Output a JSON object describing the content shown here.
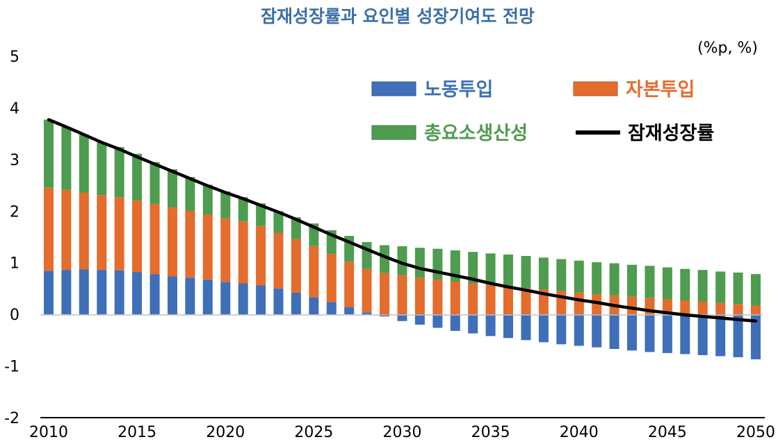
{
  "chart_data": {
    "type": "bar",
    "stacked": true,
    "title": "잠재성장률과 요인별 성장기여도 전망",
    "unit_label": "(%p, %)",
    "ylim": [
      -2,
      5
    ],
    "yticks": [
      5,
      4,
      3,
      2,
      1,
      0,
      -1,
      -2
    ],
    "x_start": 2010,
    "x_end": 2050,
    "xticks": [
      2010,
      2015,
      2020,
      2025,
      2030,
      2035,
      2040,
      2045,
      2050
    ],
    "legend_position": "top-right",
    "colors": {
      "labor": "#3e6fb8",
      "capital": "#e46c2c",
      "tfp": "#4e9c4f",
      "potential": "#000000",
      "title": "#3a6fa5"
    },
    "series": [
      {
        "name": "노동투입",
        "kind": "bar",
        "values": [
          0.84,
          0.86,
          0.87,
          0.86,
          0.85,
          0.82,
          0.78,
          0.74,
          0.71,
          0.67,
          0.63,
          0.6,
          0.56,
          0.5,
          0.42,
          0.33,
          0.24,
          0.14,
          0.04,
          -0.04,
          -0.13,
          -0.2,
          -0.26,
          -0.32,
          -0.37,
          -0.42,
          -0.46,
          -0.5,
          -0.54,
          -0.58,
          -0.61,
          -0.64,
          -0.67,
          -0.7,
          -0.73,
          -0.75,
          -0.77,
          -0.79,
          -0.81,
          -0.83,
          -0.87
        ]
      },
      {
        "name": "자본투입",
        "kind": "bar",
        "values": [
          1.61,
          1.55,
          1.49,
          1.45,
          1.42,
          1.39,
          1.36,
          1.33,
          1.3,
          1.26,
          1.23,
          1.2,
          1.15,
          1.08,
          1.04,
          0.99,
          0.93,
          0.88,
          0.84,
          0.8,
          0.76,
          0.71,
          0.68,
          0.64,
          0.6,
          0.57,
          0.54,
          0.51,
          0.48,
          0.45,
          0.42,
          0.39,
          0.37,
          0.34,
          0.32,
          0.29,
          0.27,
          0.25,
          0.22,
          0.2,
          0.17
        ]
      },
      {
        "name": "총요소생산성",
        "kind": "bar",
        "values": [
          1.32,
          1.22,
          1.12,
          1.02,
          0.97,
          0.9,
          0.81,
          0.74,
          0.65,
          0.58,
          0.52,
          0.47,
          0.44,
          0.42,
          0.42,
          0.44,
          0.46,
          0.5,
          0.52,
          0.54,
          0.56,
          0.58,
          0.59,
          0.6,
          0.61,
          0.61,
          0.62,
          0.62,
          0.62,
          0.62,
          0.62,
          0.62,
          0.62,
          0.62,
          0.62,
          0.62,
          0.61,
          0.61,
          0.61,
          0.61,
          0.61
        ]
      },
      {
        "name": "잠재성장률",
        "kind": "line",
        "values": [
          3.77,
          3.63,
          3.48,
          3.33,
          3.2,
          3.05,
          2.91,
          2.77,
          2.63,
          2.49,
          2.36,
          2.24,
          2.11,
          1.98,
          1.84,
          1.69,
          1.54,
          1.4,
          1.26,
          1.12,
          0.99,
          0.89,
          0.82,
          0.75,
          0.68,
          0.6,
          0.53,
          0.47,
          0.4,
          0.34,
          0.28,
          0.23,
          0.17,
          0.12,
          0.07,
          0.03,
          -0.01,
          -0.04,
          -0.07,
          -0.1,
          -0.13
        ]
      }
    ]
  }
}
